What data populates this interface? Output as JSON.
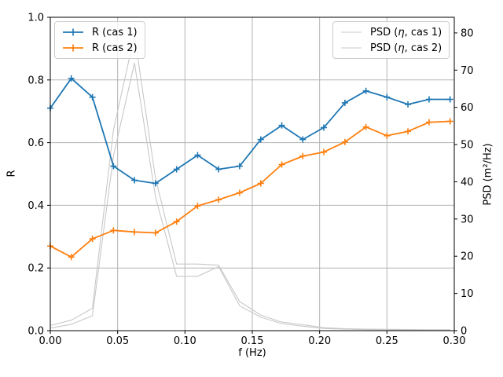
{
  "figure": {
    "background": "#ffffff",
    "xlabel": "f (Hz)",
    "ylabel_left": "R",
    "ylabel_right": "PSD (m²/Hz)"
  },
  "legend_right": {
    "entries": [
      {
        "prefix": "PSD (",
        "eta": "η",
        "suffix": ", cas 1)"
      },
      {
        "prefix": "PSD (",
        "eta": "η",
        "suffix": ", cas 2)"
      }
    ]
  },
  "chart_data": {
    "type": "line",
    "title": "",
    "xlabel": "f (Hz)",
    "ylabel_left": "R",
    "ylabel_right": "PSD (m²/Hz)",
    "xlim": [
      0.0,
      0.3
    ],
    "ylim_left": [
      0.0,
      1.0
    ],
    "ylim_right": [
      0.0,
      84.2
    ],
    "grid": true,
    "grid_color": "#b3b3b3",
    "legend_left_location": "upper left",
    "legend_right_location": "upper right",
    "x_ticks": [
      0.0,
      0.05,
      0.1,
      0.15,
      0.2,
      0.25,
      0.3
    ],
    "x_tick_labels": [
      "0.00",
      "0.05",
      "0.10",
      "0.15",
      "0.20",
      "0.25",
      "0.30"
    ],
    "y_ticks_left": [
      0.0,
      0.2,
      0.4,
      0.6,
      0.8,
      1.0
    ],
    "y_tick_labels_left": [
      "0.0",
      "0.2",
      "0.4",
      "0.6",
      "0.8",
      "1.0"
    ],
    "y_ticks_right": [
      0,
      10,
      20,
      30,
      40,
      50,
      60,
      70,
      80
    ],
    "y_tick_labels_right": [
      "0",
      "10",
      "20",
      "30",
      "40",
      "50",
      "60",
      "70",
      "80"
    ],
    "x": [
      0.0,
      0.0156,
      0.0313,
      0.0469,
      0.0625,
      0.0781,
      0.0938,
      0.1094,
      0.125,
      0.1406,
      0.1563,
      0.1719,
      0.1875,
      0.2031,
      0.2188,
      0.2344,
      0.25,
      0.2656,
      0.2813,
      0.2969
    ],
    "series": [
      {
        "name": "R (cas 1)",
        "axis": "left",
        "color": "#1f77b4",
        "marker": "plus",
        "values": [
          0.71,
          0.805,
          0.745,
          0.525,
          0.48,
          0.47,
          0.515,
          0.56,
          0.515,
          0.525,
          0.61,
          0.655,
          0.61,
          0.648,
          0.727,
          0.765,
          0.745,
          0.722,
          0.738,
          0.738
        ]
      },
      {
        "name": "R (cas 2)",
        "axis": "left",
        "color": "#ff7f0e",
        "marker": "plus",
        "values": [
          0.27,
          0.235,
          0.293,
          0.32,
          0.315,
          0.312,
          0.348,
          0.398,
          0.418,
          0.44,
          0.47,
          0.53,
          0.557,
          0.57,
          0.602,
          0.65,
          0.622,
          0.636,
          0.665,
          0.668
        ]
      },
      {
        "name": "PSD (η, cas 1)",
        "axis": "right",
        "color": "#c8c8c8",
        "marker": "none",
        "values": [
          1.4,
          2.8,
          6.0,
          54.0,
          79.4,
          41.0,
          17.9,
          17.9,
          17.6,
          7.8,
          4.2,
          2.3,
          1.6,
          0.8,
          0.5,
          0.4,
          0.35,
          0.3,
          0.25,
          0.25
        ]
      },
      {
        "name": "PSD (η, cas 2)",
        "axis": "right",
        "color": "#c8c8c8",
        "marker": "none",
        "values": [
          0.7,
          1.7,
          4.0,
          47.0,
          71.9,
          36.0,
          14.6,
          14.6,
          17.2,
          6.7,
          3.6,
          1.9,
          1.2,
          0.6,
          0.4,
          0.3,
          0.25,
          0.2,
          0.2,
          0.2
        ]
      }
    ]
  }
}
